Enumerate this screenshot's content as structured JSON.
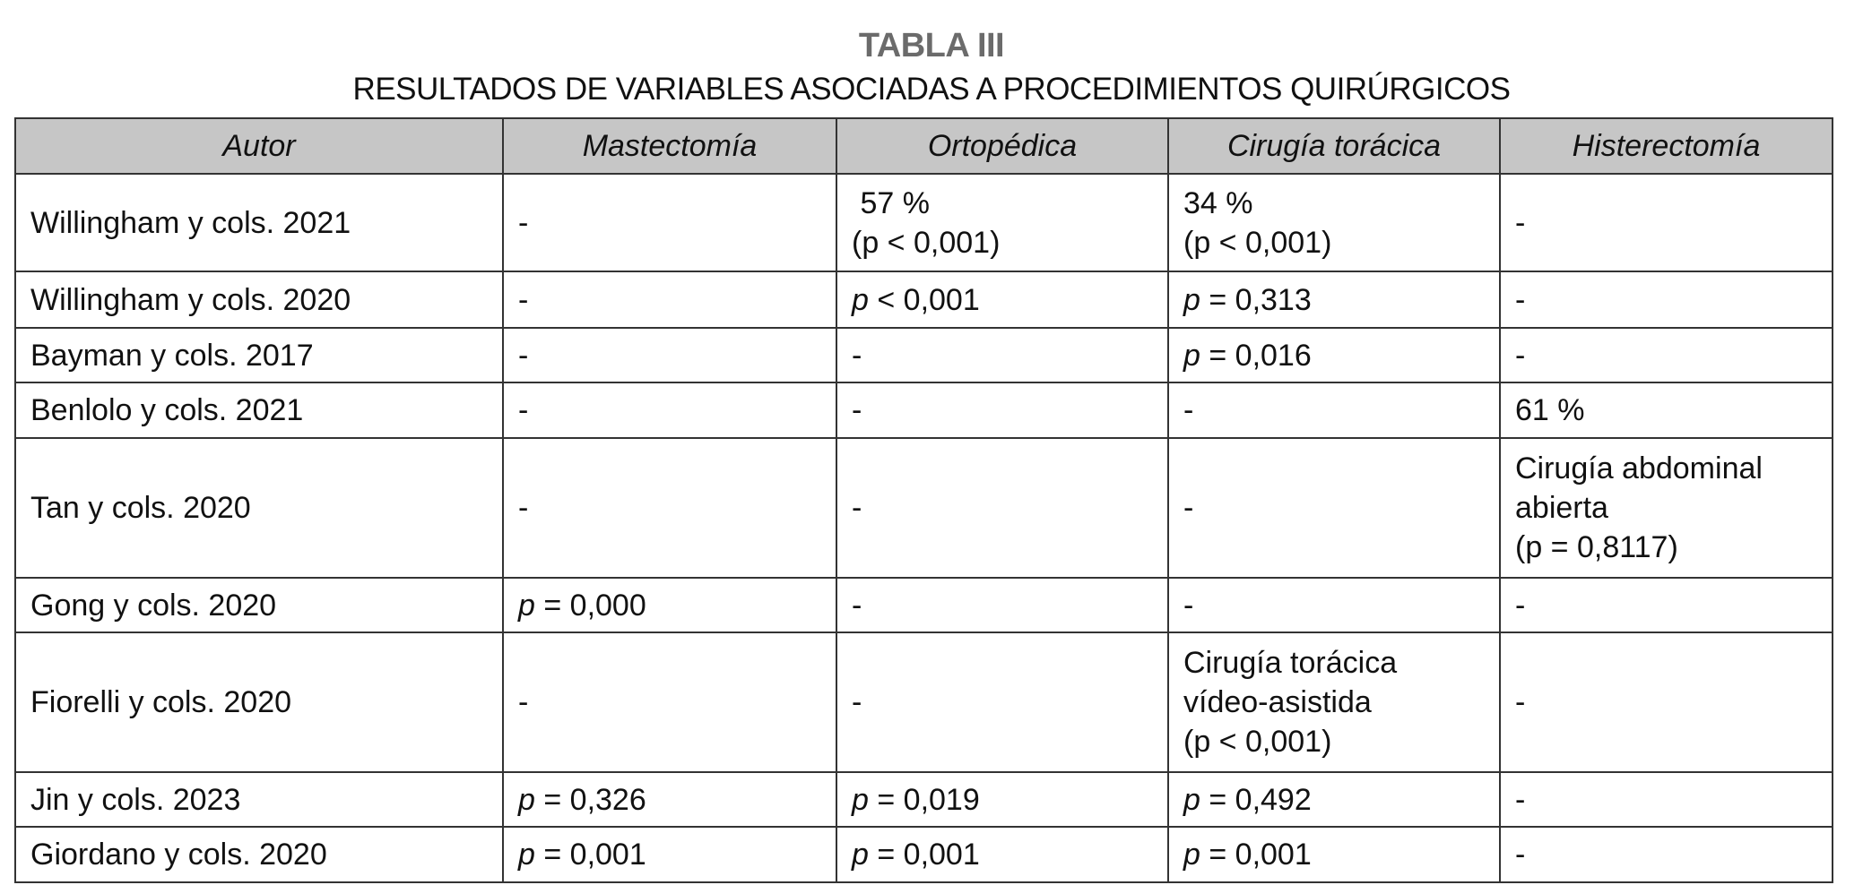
{
  "title": "TABLA III",
  "subtitle": "RESULTADOS DE VARIABLES ASOCIADAS A PROCEDIMIENTOS QUIRÚRGICOS",
  "table": {
    "headers": [
      "Autor",
      "Mastectomía",
      "Ortopédica",
      "Cirugía torácica",
      "Histerectomía"
    ],
    "rows": [
      [
        [
          "Willingham y cols. 2021"
        ],
        [
          "-"
        ],
        [
          " 57 %",
          "(p < 0,001)"
        ],
        [
          "34 %",
          "(p < 0,001)"
        ],
        [
          "-"
        ]
      ],
      [
        [
          "Willingham y cols. 2020"
        ],
        [
          "-"
        ],
        [
          "p < 0,001"
        ],
        [
          "p = 0,313"
        ],
        [
          "-"
        ]
      ],
      [
        [
          "Bayman y cols. 2017"
        ],
        [
          "-"
        ],
        [
          "-"
        ],
        [
          "p = 0,016"
        ],
        [
          "-"
        ]
      ],
      [
        [
          "Benlolo y cols. 2021"
        ],
        [
          "-"
        ],
        [
          "-"
        ],
        [
          "-"
        ],
        [
          "61 %"
        ]
      ],
      [
        [
          "Tan y cols. 2020"
        ],
        [
          "-"
        ],
        [
          "-"
        ],
        [
          "-"
        ],
        [
          "Cirugía abdominal",
          "abierta",
          "(p = 0,8117)"
        ]
      ],
      [
        [
          "Gong y cols. 2020"
        ],
        [
          "p = 0,000"
        ],
        [
          "-"
        ],
        [
          "-"
        ],
        [
          "-"
        ]
      ],
      [
        [
          "Fiorelli y cols. 2020"
        ],
        [
          "-"
        ],
        [
          "-"
        ],
        [
          "Cirugía torácica",
          "vídeo-asistida",
          "(p < 0,001)"
        ],
        [
          "-"
        ]
      ],
      [
        [
          "Jin y cols. 2023"
        ],
        [
          "p = 0,326"
        ],
        [
          "p = 0,019"
        ],
        [
          "p = 0,492"
        ],
        [
          "-"
        ]
      ],
      [
        [
          "Giordano y cols. 2020"
        ],
        [
          "p = 0,001"
        ],
        [
          "p = 0,001"
        ],
        [
          "p = 0,001"
        ],
        [
          "-"
        ]
      ]
    ]
  }
}
